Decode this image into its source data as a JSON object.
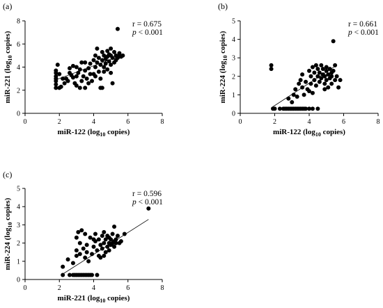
{
  "chart_data": [
    {
      "type": "scatter",
      "panel": "(a)",
      "xlabel": {
        "base": "miR-122 (log",
        "sub": "10",
        "rest": " copies)"
      },
      "ylabel": {
        "base": "miR-221 (log",
        "sub": "10",
        "rest": " copies)"
      },
      "xlim": [
        0,
        8
      ],
      "ylim": [
        0,
        8
      ],
      "xticks": [
        "0",
        "2",
        "4",
        "6",
        "8"
      ],
      "yticks": [
        "0",
        "2",
        "4",
        "6",
        "8"
      ],
      "stat_r": "r = 0.675",
      "stat_p": {
        "italic": "p",
        "rest": " < 0.001"
      },
      "trendline": [
        [
          1.8,
          2.9
        ],
        [
          5.6,
          5.0
        ]
      ],
      "points": [
        [
          1.8,
          2.2
        ],
        [
          1.8,
          2.5
        ],
        [
          1.8,
          2.8
        ],
        [
          1.8,
          3.0
        ],
        [
          1.8,
          3.2
        ],
        [
          1.8,
          3.5
        ],
        [
          1.9,
          4.2
        ],
        [
          1.8,
          3.7
        ],
        [
          2.0,
          2.2
        ],
        [
          2.1,
          2.3
        ],
        [
          2.3,
          2.6
        ],
        [
          2.4,
          3.0
        ],
        [
          2.5,
          2.8
        ],
        [
          2.6,
          3.5
        ],
        [
          2.6,
          3.9
        ],
        [
          2.7,
          3.3
        ],
        [
          2.8,
          4.1
        ],
        [
          2.9,
          2.6
        ],
        [
          3.0,
          2.4
        ],
        [
          3.0,
          3.2
        ],
        [
          3.1,
          3.5
        ],
        [
          3.2,
          2.2
        ],
        [
          3.2,
          3.8
        ],
        [
          3.3,
          4.4
        ],
        [
          3.4,
          3.2
        ],
        [
          3.5,
          3.7
        ],
        [
          3.5,
          4.4
        ],
        [
          3.6,
          3.0
        ],
        [
          3.7,
          2.6
        ],
        [
          3.7,
          3.9
        ],
        [
          3.8,
          4.3
        ],
        [
          3.9,
          2.8
        ],
        [
          4.0,
          3.4
        ],
        [
          4.0,
          4.6
        ],
        [
          4.1,
          4.0
        ],
        [
          4.1,
          5.0
        ],
        [
          4.2,
          4.4
        ],
        [
          4.2,
          5.6
        ],
        [
          4.3,
          3.6
        ],
        [
          4.3,
          4.8
        ],
        [
          4.4,
          3.0
        ],
        [
          4.4,
          4.2
        ],
        [
          4.5,
          5.3
        ],
        [
          4.5,
          4.6
        ],
        [
          4.6,
          4.0
        ],
        [
          4.6,
          3.6
        ],
        [
          4.6,
          5.0
        ],
        [
          4.7,
          4.7
        ],
        [
          4.7,
          4.3
        ],
        [
          4.8,
          5.4
        ],
        [
          4.8,
          3.8
        ],
        [
          4.9,
          4.5
        ],
        [
          4.9,
          5.1
        ],
        [
          5.0,
          4.2
        ],
        [
          5.0,
          5.0
        ],
        [
          5.0,
          3.5
        ],
        [
          5.1,
          4.8
        ],
        [
          5.1,
          2.6
        ],
        [
          5.2,
          4.4
        ],
        [
          5.2,
          5.3
        ],
        [
          5.3,
          4.6
        ],
        [
          5.3,
          5.0
        ],
        [
          5.4,
          7.3
        ],
        [
          5.4,
          4.8
        ],
        [
          5.5,
          5.2
        ],
        [
          5.6,
          4.9
        ],
        [
          5.7,
          5.0
        ],
        [
          4.4,
          2.2
        ],
        [
          4.5,
          2.2
        ],
        [
          3.5,
          2.2
        ],
        [
          2.0,
          3.4
        ],
        [
          2.2,
          3.0
        ],
        [
          3.0,
          4.0
        ],
        [
          3.8,
          3.4
        ],
        [
          4.1,
          3.2
        ],
        [
          4.8,
          4.9
        ],
        [
          5.0,
          5.6
        ],
        [
          5.5,
          5.0
        ],
        [
          3.3,
          2.8
        ],
        [
          2.8,
          3.1
        ]
      ]
    },
    {
      "type": "scatter",
      "panel": "(b)",
      "xlabel": {
        "base": "miR-122 (log",
        "sub": "10",
        "rest": " copies)"
      },
      "ylabel": {
        "base": "miR-224 (log",
        "sub": "10",
        "rest": " copies)"
      },
      "xlim": [
        0,
        8
      ],
      "ylim": [
        0,
        5
      ],
      "xticks": [
        "0",
        "2",
        "4",
        "6",
        "8"
      ],
      "yticks": [
        "0",
        "1",
        "2",
        "3",
        "4",
        "5"
      ],
      "stat_r": "r = 0.661",
      "stat_p": {
        "italic": "p",
        "rest": " < 0.001"
      },
      "trendline": [
        [
          1.8,
          0.3
        ],
        [
          5.6,
          2.6
        ]
      ],
      "points": [
        [
          1.8,
          2.4
        ],
        [
          1.8,
          2.6
        ],
        [
          1.9,
          0.25
        ],
        [
          2.0,
          0.25
        ],
        [
          2.3,
          0.25
        ],
        [
          2.5,
          0.25
        ],
        [
          2.6,
          0.25
        ],
        [
          2.7,
          0.25
        ],
        [
          2.8,
          0.25
        ],
        [
          2.9,
          0.25
        ],
        [
          3.0,
          0.25
        ],
        [
          3.1,
          0.25
        ],
        [
          3.2,
          0.25
        ],
        [
          3.3,
          0.25
        ],
        [
          3.4,
          0.25
        ],
        [
          3.5,
          0.25
        ],
        [
          3.6,
          0.25
        ],
        [
          3.7,
          0.25
        ],
        [
          3.8,
          0.25
        ],
        [
          4.0,
          0.25
        ],
        [
          4.2,
          0.25
        ],
        [
          4.5,
          0.25
        ],
        [
          2.8,
          0.8
        ],
        [
          3.0,
          0.6
        ],
        [
          3.1,
          1.0
        ],
        [
          3.2,
          1.3
        ],
        [
          3.3,
          0.9
        ],
        [
          3.4,
          1.6
        ],
        [
          3.5,
          1.8
        ],
        [
          3.6,
          1.4
        ],
        [
          3.7,
          1.0
        ],
        [
          3.8,
          1.7
        ],
        [
          3.9,
          1.3
        ],
        [
          4.0,
          2.3
        ],
        [
          4.1,
          1.6
        ],
        [
          4.1,
          2.0
        ],
        [
          4.2,
          2.5
        ],
        [
          4.3,
          1.8
        ],
        [
          4.3,
          2.2
        ],
        [
          4.4,
          1.5
        ],
        [
          4.4,
          2.6
        ],
        [
          4.5,
          2.0
        ],
        [
          4.5,
          2.4
        ],
        [
          4.6,
          1.7
        ],
        [
          4.6,
          2.2
        ],
        [
          4.7,
          2.6
        ],
        [
          4.7,
          1.9
        ],
        [
          4.8,
          2.1
        ],
        [
          4.8,
          2.4
        ],
        [
          4.9,
          1.6
        ],
        [
          4.9,
          2.0
        ],
        [
          5.0,
          2.3
        ],
        [
          5.0,
          1.8
        ],
        [
          5.0,
          2.5
        ],
        [
          5.1,
          2.1
        ],
        [
          5.1,
          1.4
        ],
        [
          5.2,
          2.4
        ],
        [
          5.2,
          1.9
        ],
        [
          5.3,
          2.2
        ],
        [
          5.3,
          2.0
        ],
        [
          5.4,
          3.9
        ],
        [
          5.4,
          2.3
        ],
        [
          5.5,
          2.6
        ],
        [
          5.5,
          1.8
        ],
        [
          5.6,
          2.0
        ],
        [
          5.7,
          1.4
        ],
        [
          5.8,
          1.8
        ],
        [
          4.0,
          1.2
        ],
        [
          3.6,
          2.1
        ],
        [
          4.2,
          1.1
        ],
        [
          4.9,
          1.3
        ],
        [
          5.3,
          1.6
        ]
      ]
    },
    {
      "type": "scatter",
      "panel": "(c)",
      "xlabel": {
        "base": "miR-221 (log",
        "sub": "10",
        "rest": " copies)"
      },
      "ylabel": {
        "base": "miR-224 (log",
        "sub": "10",
        "rest": " copies)"
      },
      "xlim": [
        0,
        8
      ],
      "ylim": [
        0,
        5
      ],
      "xticks": [
        "0",
        "2",
        "4",
        "6",
        "8"
      ],
      "yticks": [
        "0",
        "1",
        "2",
        "3",
        "4",
        "5"
      ],
      "stat_r": "r = 0.596",
      "stat_p": {
        "italic": "p",
        "rest": " < 0.001"
      },
      "trendline": [
        [
          2.2,
          0.3
        ],
        [
          7.2,
          3.3
        ]
      ],
      "points": [
        [
          2.2,
          0.25
        ],
        [
          2.2,
          0.7
        ],
        [
          2.5,
          1.1
        ],
        [
          2.6,
          0.25
        ],
        [
          2.8,
          0.25
        ],
        [
          2.9,
          0.25
        ],
        [
          3.0,
          0.25
        ],
        [
          3.1,
          0.25
        ],
        [
          3.2,
          0.25
        ],
        [
          3.3,
          0.25
        ],
        [
          3.4,
          0.25
        ],
        [
          3.5,
          0.25
        ],
        [
          3.6,
          0.25
        ],
        [
          3.7,
          0.25
        ],
        [
          3.8,
          0.25
        ],
        [
          3.9,
          0.25
        ],
        [
          4.2,
          0.25
        ],
        [
          2.8,
          0.9
        ],
        [
          3.0,
          1.3
        ],
        [
          3.0,
          2.3
        ],
        [
          3.1,
          2.6
        ],
        [
          3.2,
          2.0
        ],
        [
          3.2,
          1.4
        ],
        [
          3.3,
          2.7
        ],
        [
          3.4,
          1.7
        ],
        [
          3.5,
          1.2
        ],
        [
          3.5,
          2.5
        ],
        [
          3.6,
          1.9
        ],
        [
          3.7,
          1.0
        ],
        [
          3.8,
          2.3
        ],
        [
          3.9,
          1.4
        ],
        [
          4.0,
          1.8
        ],
        [
          4.1,
          2.1
        ],
        [
          4.1,
          2.5
        ],
        [
          4.2,
          1.6
        ],
        [
          4.3,
          2.2
        ],
        [
          4.3,
          1.3
        ],
        [
          4.4,
          1.9
        ],
        [
          4.5,
          2.4
        ],
        [
          4.5,
          1.7
        ],
        [
          4.6,
          2.0
        ],
        [
          4.6,
          2.6
        ],
        [
          4.7,
          1.5
        ],
        [
          4.7,
          2.2
        ],
        [
          4.8,
          1.8
        ],
        [
          4.8,
          2.4
        ],
        [
          4.9,
          2.0
        ],
        [
          4.9,
          1.6
        ],
        [
          5.0,
          2.2
        ],
        [
          5.0,
          1.9
        ],
        [
          5.1,
          2.5
        ],
        [
          5.1,
          2.0
        ],
        [
          5.2,
          2.9
        ],
        [
          5.2,
          1.8
        ],
        [
          5.3,
          2.2
        ],
        [
          5.3,
          2.0
        ],
        [
          5.4,
          2.4
        ],
        [
          5.5,
          2.0
        ],
        [
          5.6,
          2.1
        ],
        [
          5.8,
          2.5
        ],
        [
          7.2,
          3.9
        ],
        [
          3.0,
          1.6
        ],
        [
          3.6,
          1.5
        ],
        [
          4.4,
          1.2
        ],
        [
          4.0,
          2.2
        ],
        [
          4.9,
          2.3
        ],
        [
          5.2,
          2.1
        ],
        [
          4.6,
          1.3
        ]
      ]
    }
  ]
}
